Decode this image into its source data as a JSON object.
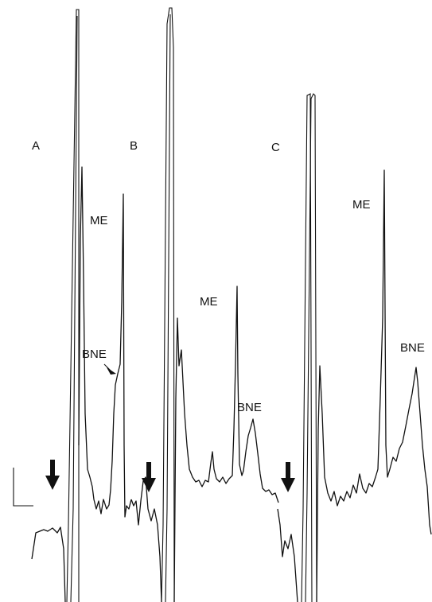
{
  "panels": [
    {
      "label": "A",
      "me": "ME",
      "bne": "BNE"
    },
    {
      "label": "B",
      "me": "ME",
      "bne": "BNE"
    },
    {
      "label": "C",
      "me": "ME",
      "bne": "BNE"
    }
  ]
}
